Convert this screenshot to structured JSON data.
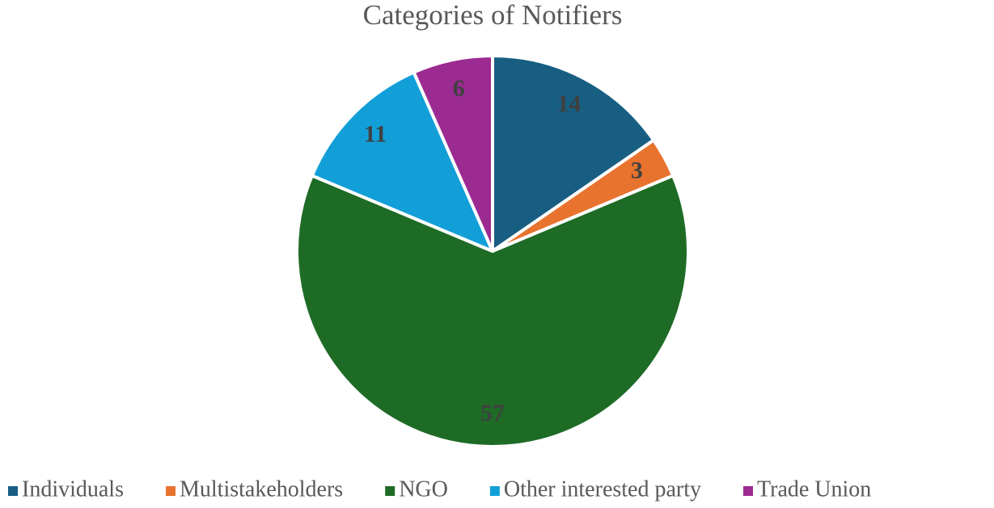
{
  "chart_data": {
    "type": "pie",
    "title": "Categories of Notifiers",
    "categories": [
      "Individuals",
      "Multistakeholders",
      "NGO",
      "Other interested party",
      "Trade Union"
    ],
    "values": [
      14,
      3,
      57,
      11,
      6
    ],
    "colors": [
      "#175e82",
      "#e8732e",
      "#1e6b26",
      "#129fd8",
      "#9b2a91"
    ],
    "legend": "bottom"
  }
}
